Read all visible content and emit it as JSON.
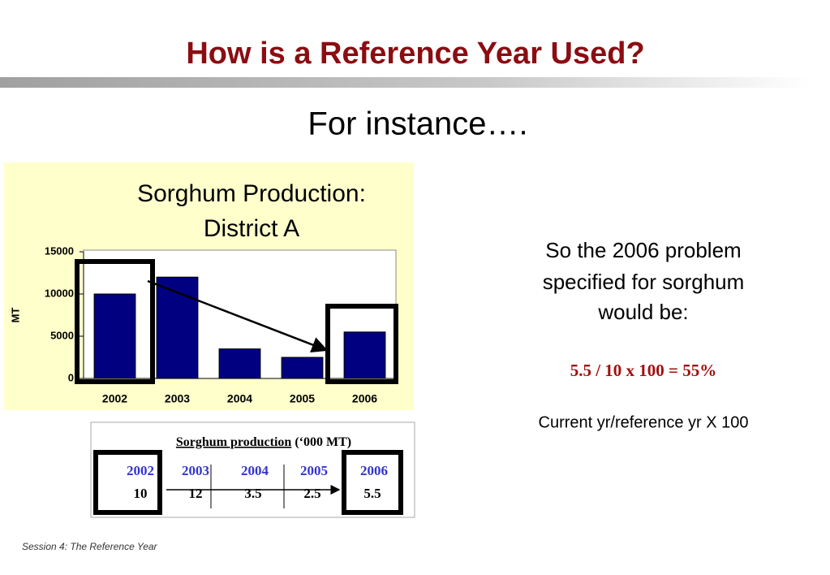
{
  "slide_title": "How is a Reference Year Used?",
  "subtitle": "For instance….",
  "chart_data": {
    "type": "bar",
    "title": [
      "Sorghum Production:",
      "District A"
    ],
    "y_label": "MT",
    "categories": [
      "2002",
      "2003",
      "2004",
      "2005",
      "2006"
    ],
    "values": [
      10000,
      12000,
      3500,
      2500,
      5500
    ],
    "color": "#000080",
    "ylim": [
      0,
      15000
    ],
    "yticks": [
      0,
      5000,
      10000,
      15000
    ]
  },
  "explanation": [
    "So the 2006 problem",
    "specified for sorghum",
    "would be:"
  ],
  "formula": "5.5 / 10 x 100 = 55%",
  "formula_note": "Current yr/reference yr X 100",
  "table": {
    "caption": "Sorghum production",
    "caption_unit": "(‘000 MT)",
    "years": [
      "2002",
      "2003",
      "2004",
      "2005",
      "2006"
    ],
    "values": [
      10,
      12,
      3.5,
      2.5,
      5.5
    ]
  },
  "footer": "Session 4: The Reference Year"
}
